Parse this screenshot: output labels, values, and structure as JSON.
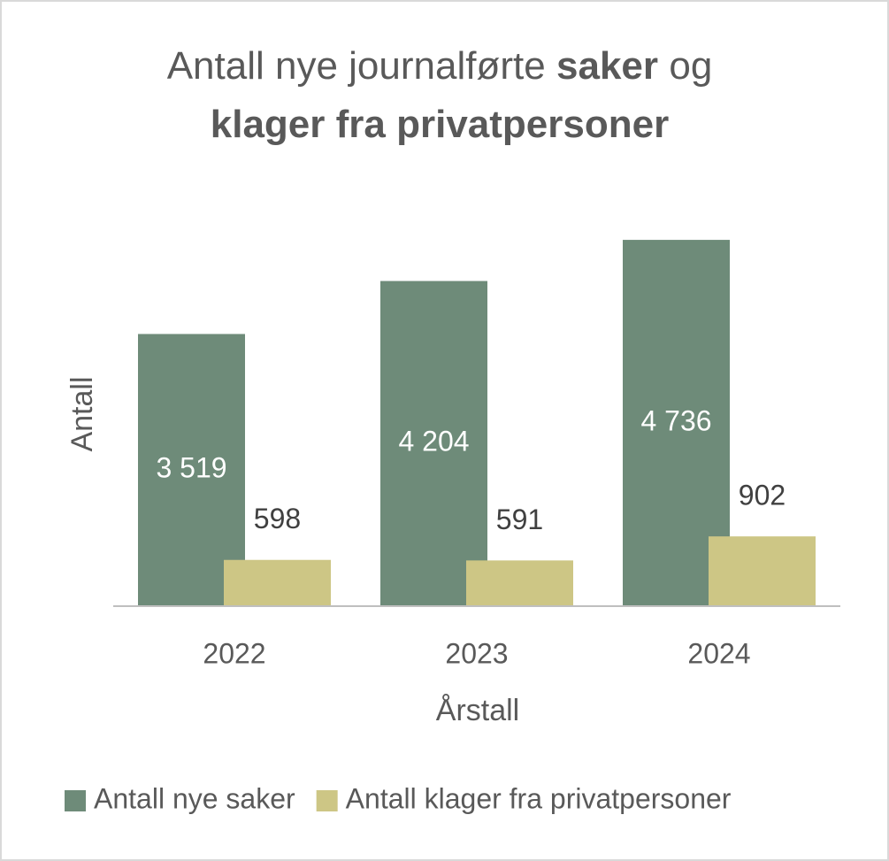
{
  "chart_data": {
    "type": "bar",
    "title": [
      [
        {
          "text": "Antall nye journalførte",
          "bold": false
        },
        {
          "text": "saker",
          "bold": true
        },
        {
          "text": "og",
          "bold": false
        }
      ],
      [
        {
          "text": "klager fra privatpersoner",
          "bold": true
        }
      ]
    ],
    "x_label": "Årstall",
    "y_label": "Antall",
    "categories": [
      "2022",
      "2023",
      "2024"
    ],
    "series": [
      {
        "name": "Antall nye saker",
        "color": "#6e8b79",
        "values": [
          3519,
          4204,
          4736
        ],
        "value_labels": [
          "3 519",
          "4 204",
          "4 736"
        ],
        "label_color": "#ffffff",
        "label_position": "inside"
      },
      {
        "name": "Antall klager fra privatpersoner",
        "color": "#cdc685",
        "values": [
          598,
          591,
          902
        ],
        "label_color": "#404040",
        "label_position": "above"
      }
    ],
    "ylim": [
      0,
      5000
    ],
    "grid": false,
    "legend": "bottom"
  }
}
